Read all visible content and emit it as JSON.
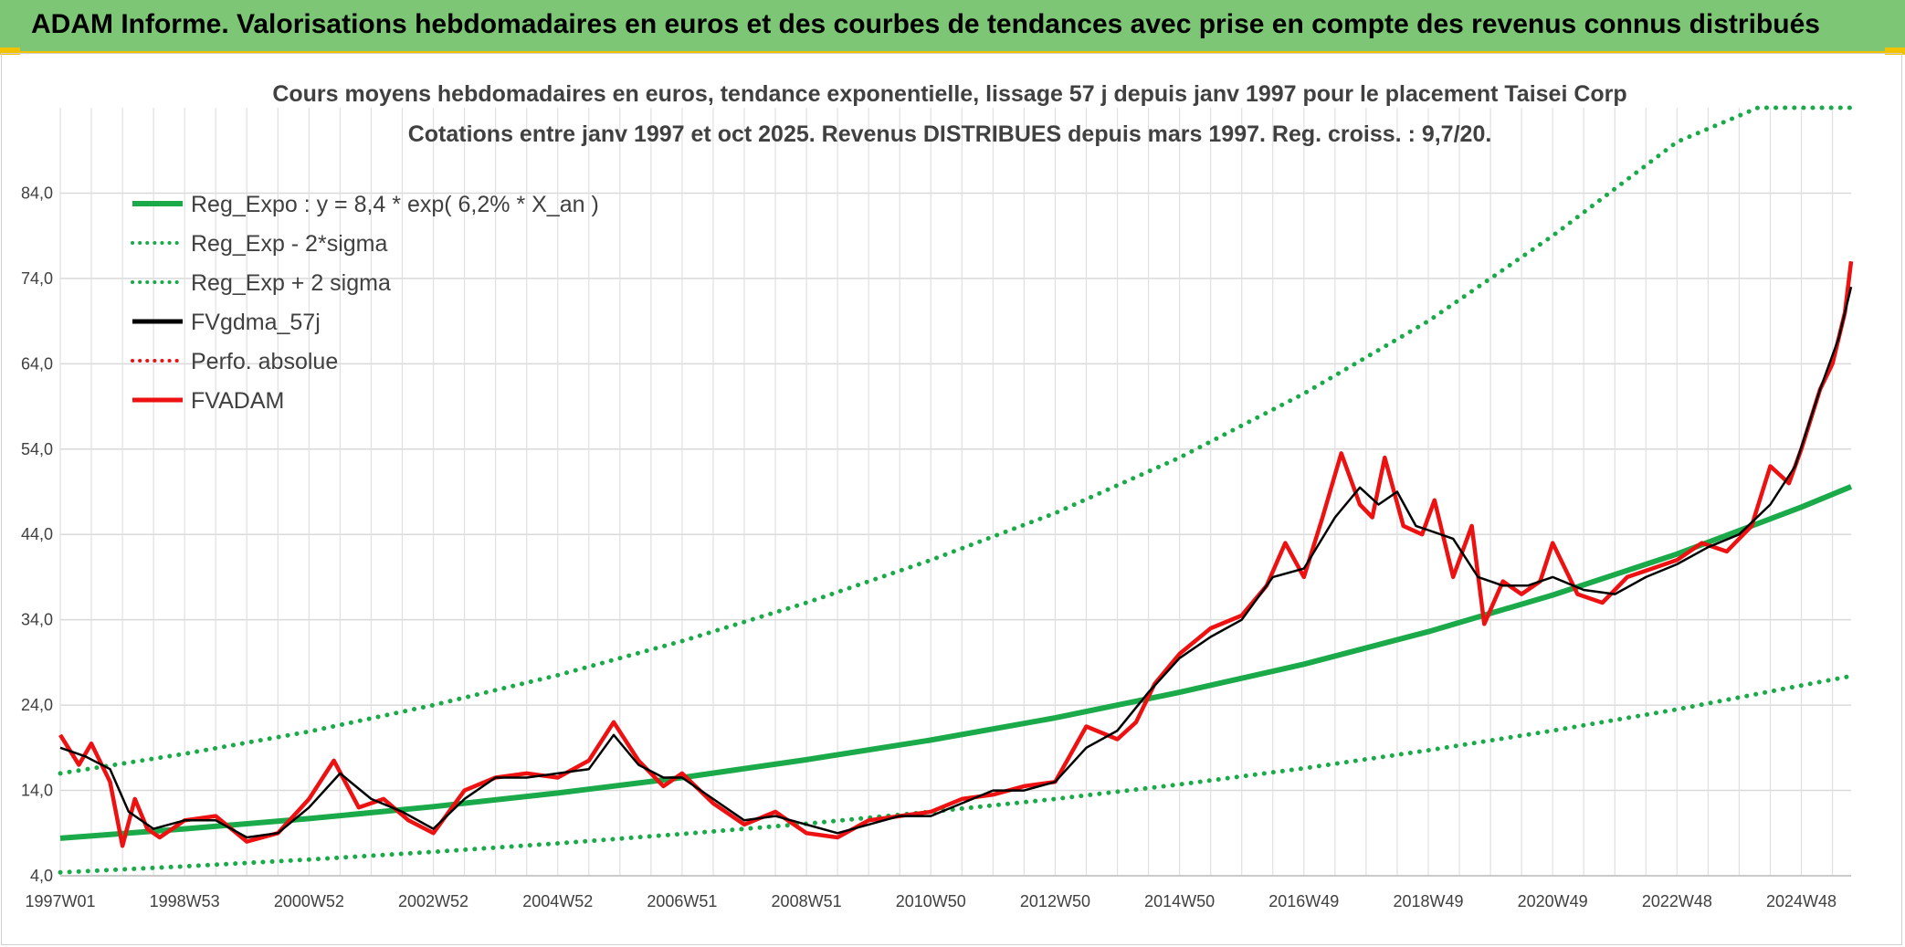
{
  "banner": {
    "title": "ADAM Informe. Valorisations hebdomadaires en euros et des courbes de tendances avec prise en compte des revenus connus distribués"
  },
  "chart_data": {
    "type": "line",
    "title": "Cours moyens hebdomadaires en euros, tendance exponentielle, lissage 57 j depuis janv 1997 pour le placement Taisei Corp",
    "subtitle": "Cotations entre janv 1997 et oct 2025. Revenus DISTRIBUES depuis mars 1997. Reg. croiss. : 9,7/20.",
    "xlabel": "",
    "ylabel": "",
    "x_range": [
      1997.0,
      2025.8
    ],
    "ylim": [
      4,
      94
    ],
    "y_ticks": [
      4,
      14,
      24,
      34,
      44,
      54,
      64,
      74,
      84
    ],
    "y_tick_labels": [
      "4,0",
      "14,0",
      "24,0",
      "34,0",
      "44,0",
      "54,0",
      "64,0",
      "74,0",
      "84,0"
    ],
    "x_tick_labels": [
      {
        "label": "1997W01",
        "x": 1997.0
      },
      {
        "label": "1998W53",
        "x": 1999.0
      },
      {
        "label": "2000W52",
        "x": 2001.0
      },
      {
        "label": "2002W52",
        "x": 2003.0
      },
      {
        "label": "2004W52",
        "x": 2005.0
      },
      {
        "label": "2006W51",
        "x": 2007.0
      },
      {
        "label": "2008W51",
        "x": 2009.0
      },
      {
        "label": "2010W50",
        "x": 2011.0
      },
      {
        "label": "2012W50",
        "x": 2013.0
      },
      {
        "label": "2014W50",
        "x": 2015.0
      },
      {
        "label": "2016W49",
        "x": 2017.0
      },
      {
        "label": "2018W49",
        "x": 2019.0
      },
      {
        "label": "2020W49",
        "x": 2021.0
      },
      {
        "label": "2022W48",
        "x": 2023.0
      },
      {
        "label": "2024W48",
        "x": 2025.0
      }
    ],
    "grid": true,
    "legend_position": "top-left",
    "series": [
      {
        "name": "Reg_Expo : y = 8,4 * exp( 6,2% *  X_an )",
        "color": "#1aaa4a",
        "style": "solid",
        "x": [
          1997.0,
          1999.0,
          2001.0,
          2003.0,
          2005.0,
          2007.0,
          2009.0,
          2011.0,
          2013.0,
          2015.0,
          2017.0,
          2019.0,
          2021.0,
          2023.0,
          2025.0,
          2025.8
        ],
        "values": [
          8.4,
          9.5,
          10.7,
          12.1,
          13.7,
          15.5,
          17.6,
          19.9,
          22.5,
          25.5,
          28.8,
          32.6,
          36.9,
          41.7,
          47.2,
          49.6
        ]
      },
      {
        "name": "Reg_Exp - 2*sigma",
        "color": "#1aaa4a",
        "style": "dotted",
        "x": [
          1997.0,
          1999.0,
          2001.0,
          2003.0,
          2005.0,
          2007.0,
          2009.0,
          2011.0,
          2013.0,
          2015.0,
          2017.0,
          2019.0,
          2021.0,
          2023.0,
          2025.0,
          2025.8
        ],
        "values": [
          4.4,
          5.1,
          5.9,
          6.8,
          7.8,
          8.9,
          10.1,
          11.5,
          13.0,
          14.7,
          16.6,
          18.7,
          21.0,
          23.5,
          26.3,
          27.4
        ]
      },
      {
        "name": "Reg_Exp + 2 sigma",
        "color": "#1aaa4a",
        "style": "dotted",
        "x": [
          1997.0,
          1999.0,
          2001.0,
          2003.0,
          2005.0,
          2007.0,
          2009.0,
          2011.0,
          2013.0,
          2015.0,
          2017.0,
          2019.0,
          2021.0,
          2023.0,
          2024.3,
          2025.8
        ],
        "values": [
          16.0,
          18.3,
          20.9,
          24.0,
          27.5,
          31.5,
          36.0,
          41.0,
          46.5,
          53.0,
          60.5,
          69.0,
          79.0,
          90.0,
          94.0,
          94.0
        ]
      },
      {
        "name": "FVgdma_57j",
        "color": "#000000",
        "style": "solid",
        "x": [
          1997.0,
          1997.4,
          1997.8,
          1998.1,
          1998.5,
          1999.0,
          1999.5,
          2000.0,
          2000.5,
          2001.0,
          2001.5,
          2002.0,
          2002.5,
          2003.0,
          2003.5,
          2004.0,
          2004.5,
          2005.0,
          2005.5,
          2005.9,
          2006.3,
          2006.7,
          2007.0,
          2007.5,
          2008.0,
          2008.5,
          2009.0,
          2009.5,
          2010.0,
          2010.5,
          2011.0,
          2011.5,
          2012.0,
          2012.5,
          2013.0,
          2013.5,
          2014.0,
          2014.5,
          2015.0,
          2015.5,
          2016.0,
          2016.5,
          2017.0,
          2017.5,
          2017.9,
          2018.2,
          2018.5,
          2018.8,
          2019.0,
          2019.4,
          2019.8,
          2020.2,
          2020.6,
          2021.0,
          2021.5,
          2022.0,
          2022.5,
          2023.0,
          2023.5,
          2024.0,
          2024.5,
          2024.9,
          2025.3,
          2025.6,
          2025.8
        ],
        "values": [
          19.0,
          18.0,
          16.5,
          11.5,
          9.5,
          10.5,
          10.5,
          8.5,
          9.0,
          12.0,
          16.0,
          13.0,
          11.5,
          9.5,
          13.0,
          15.5,
          15.5,
          16.0,
          16.5,
          20.5,
          17.0,
          15.5,
          15.5,
          13.0,
          10.5,
          11.0,
          10.0,
          9.0,
          10.0,
          11.0,
          11.0,
          12.5,
          14.0,
          14.0,
          15.0,
          19.0,
          21.0,
          25.5,
          29.5,
          32.0,
          34.0,
          39.0,
          40.0,
          46.0,
          49.5,
          47.5,
          49.0,
          45.0,
          44.5,
          43.5,
          39.0,
          38.0,
          38.0,
          39.0,
          37.5,
          37.0,
          39.0,
          40.5,
          42.5,
          44.0,
          47.5,
          52.0,
          61.0,
          67.0,
          73.0
        ]
      },
      {
        "name": "Perfo. absolue",
        "color": "#ee1111",
        "style": "dotted",
        "x": [],
        "values": []
      },
      {
        "name": "FVADAM",
        "color": "#ee1111",
        "style": "solid",
        "x": [
          1997.0,
          1997.3,
          1997.5,
          1997.8,
          1998.0,
          1998.2,
          1998.4,
          1998.6,
          1999.0,
          1999.5,
          2000.0,
          2000.5,
          2001.0,
          2001.4,
          2001.8,
          2002.2,
          2002.6,
          2003.0,
          2003.5,
          2004.0,
          2004.5,
          2005.0,
          2005.5,
          2005.9,
          2006.3,
          2006.7,
          2007.0,
          2007.5,
          2008.0,
          2008.5,
          2009.0,
          2009.5,
          2010.0,
          2010.5,
          2011.0,
          2011.5,
          2012.0,
          2012.5,
          2013.0,
          2013.5,
          2014.0,
          2014.3,
          2014.6,
          2015.0,
          2015.5,
          2016.0,
          2016.4,
          2016.7,
          2017.0,
          2017.3,
          2017.6,
          2017.9,
          2018.1,
          2018.3,
          2018.6,
          2018.9,
          2019.1,
          2019.4,
          2019.7,
          2019.9,
          2020.2,
          2020.5,
          2020.8,
          2021.0,
          2021.4,
          2021.8,
          2022.2,
          2022.6,
          2023.0,
          2023.4,
          2023.8,
          2024.2,
          2024.5,
          2024.8,
          2025.0,
          2025.3,
          2025.5,
          2025.7,
          2025.8
        ],
        "values": [
          20.5,
          17.0,
          19.5,
          15.0,
          7.5,
          13.0,
          9.5,
          8.5,
          10.5,
          11.0,
          8.0,
          9.0,
          13.0,
          17.5,
          12.0,
          13.0,
          10.5,
          9.0,
          14.0,
          15.5,
          16.0,
          15.5,
          17.5,
          22.0,
          17.5,
          14.5,
          16.0,
          12.5,
          10.0,
          11.5,
          9.0,
          8.5,
          10.5,
          11.0,
          11.5,
          13.0,
          13.5,
          14.5,
          15.0,
          21.5,
          20.0,
          22.0,
          26.5,
          30.0,
          33.0,
          34.5,
          38.0,
          43.0,
          39.0,
          46.0,
          53.5,
          47.5,
          46.0,
          53.0,
          45.0,
          44.0,
          48.0,
          39.0,
          45.0,
          33.5,
          38.5,
          37.0,
          38.5,
          43.0,
          37.0,
          36.0,
          39.0,
          40.0,
          41.0,
          43.0,
          42.0,
          45.0,
          52.0,
          50.0,
          54.0,
          61.0,
          64.0,
          70.0,
          76.0
        ]
      }
    ]
  }
}
